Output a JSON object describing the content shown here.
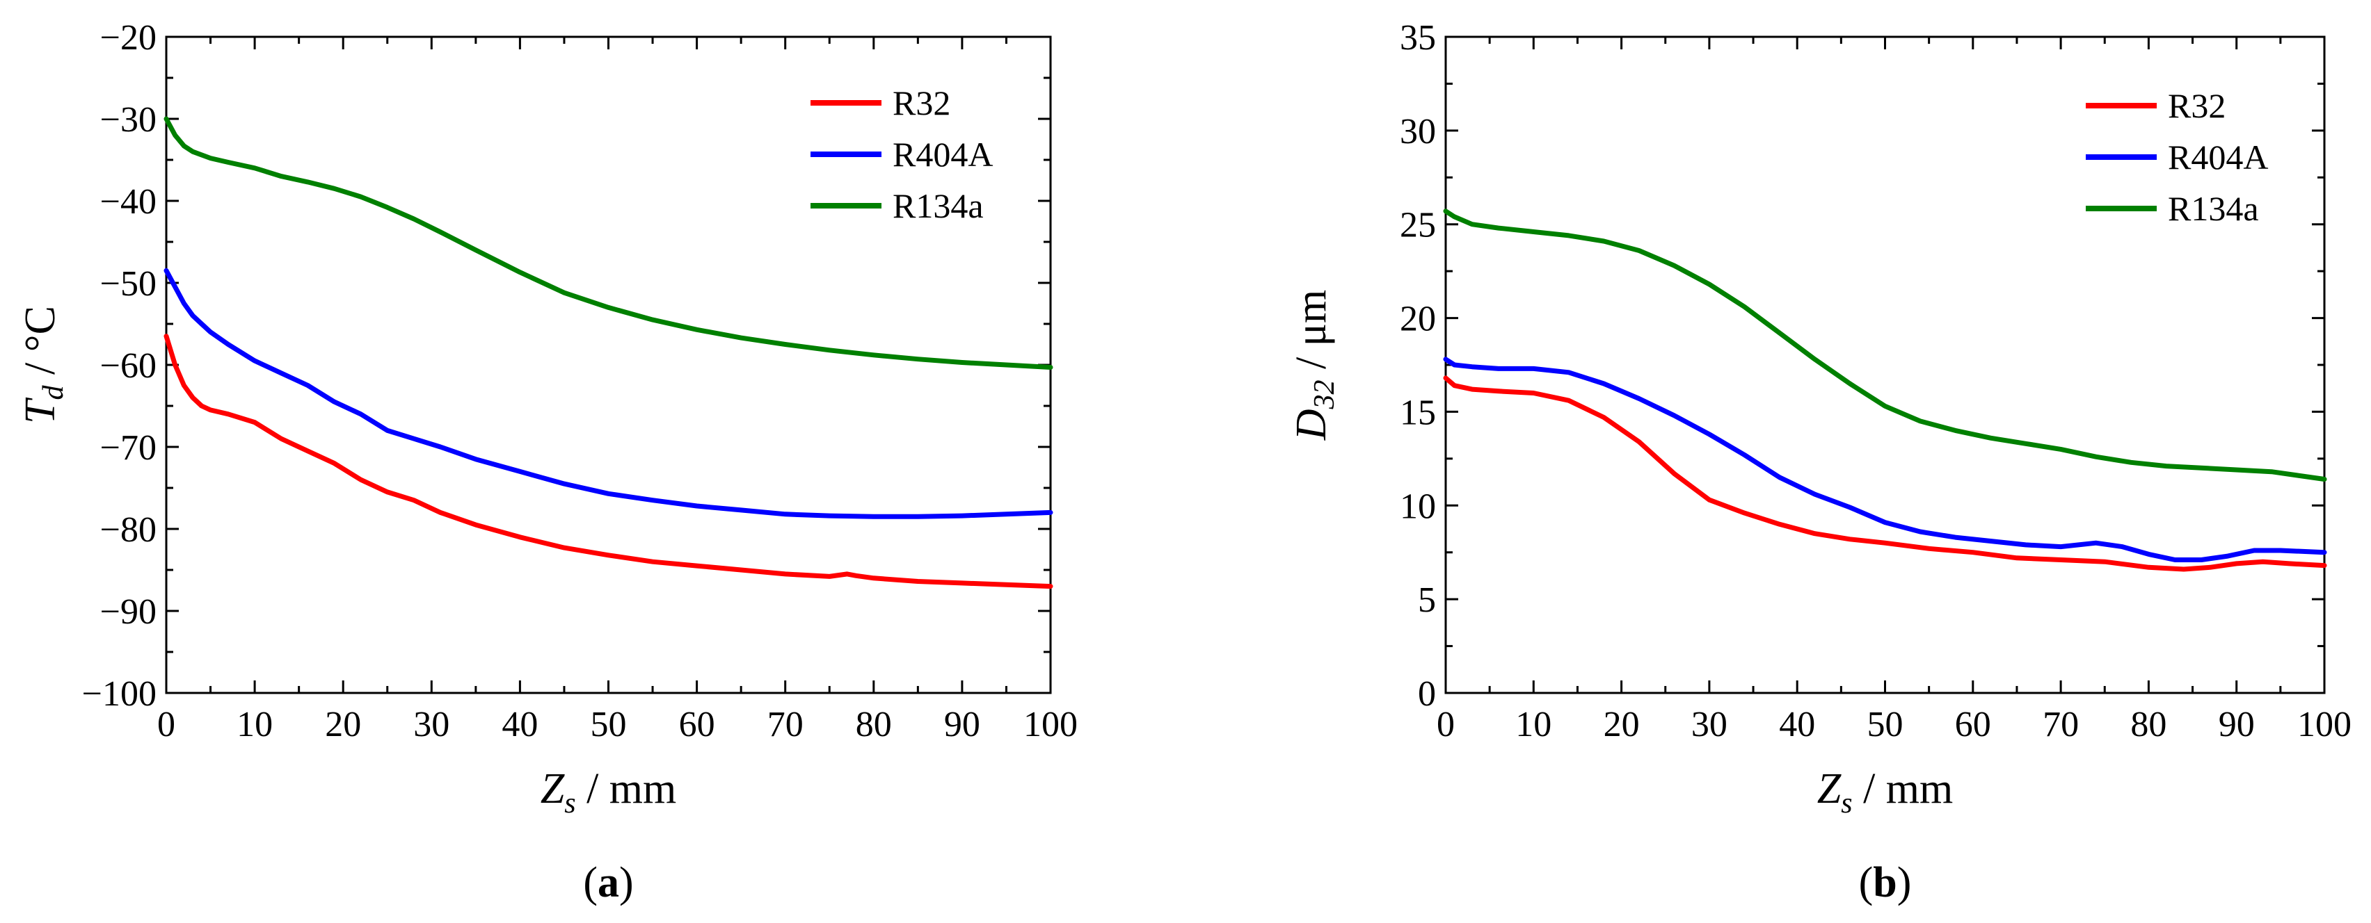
{
  "chart_data": [
    {
      "type": "line",
      "panel_label": "a",
      "ylabel": {
        "var": "T",
        "sub": "d",
        "unit": " / °C"
      },
      "xlabel": {
        "var": "Z",
        "sub": "s",
        "unit": " / mm"
      },
      "xlim": [
        0,
        100
      ],
      "ylim": [
        -100,
        -20
      ],
      "xticks": [
        0,
        10,
        20,
        30,
        40,
        50,
        60,
        70,
        80,
        90,
        100
      ],
      "yticks": [
        -100,
        -90,
        -80,
        -70,
        -60,
        -50,
        -40,
        -30,
        -20
      ],
      "legend_position": "top-right",
      "series": [
        {
          "name": "R32",
          "color": "#ff0000",
          "x": [
            0,
            1,
            2,
            3,
            4,
            5,
            7,
            10,
            13,
            16,
            19,
            22,
            25,
            28,
            31,
            35,
            40,
            45,
            50,
            55,
            60,
            65,
            70,
            75,
            77,
            78,
            80,
            85,
            90,
            95,
            100
          ],
          "y": [
            -56.5,
            -60,
            -62.5,
            -64,
            -65,
            -65.5,
            -66,
            -67,
            -69,
            -70.5,
            -72,
            -74,
            -75.5,
            -76.5,
            -78,
            -79.5,
            -81,
            -82.3,
            -83.2,
            -84,
            -84.5,
            -85,
            -85.5,
            -85.8,
            -85.5,
            -85.7,
            -86,
            -86.4,
            -86.6,
            -86.8,
            -87
          ]
        },
        {
          "name": "R404A",
          "color": "#0000ff",
          "x": [
            0,
            1,
            2,
            3,
            4,
            5,
            7,
            10,
            13,
            16,
            19,
            22,
            25,
            28,
            31,
            35,
            40,
            45,
            50,
            55,
            60,
            65,
            70,
            75,
            80,
            85,
            90,
            95,
            100
          ],
          "y": [
            -48.5,
            -50.5,
            -52.5,
            -54,
            -55,
            -56,
            -57.5,
            -59.5,
            -61,
            -62.5,
            -64.5,
            -66,
            -68,
            -69,
            -70,
            -71.5,
            -73,
            -74.5,
            -75.7,
            -76.5,
            -77.2,
            -77.7,
            -78.2,
            -78.4,
            -78.5,
            -78.5,
            -78.4,
            -78.2,
            -78
          ]
        },
        {
          "name": "R134a",
          "color": "#008000",
          "x": [
            0,
            1,
            2,
            3,
            5,
            7,
            10,
            13,
            16,
            19,
            22,
            25,
            28,
            31,
            35,
            40,
            45,
            50,
            55,
            60,
            65,
            70,
            75,
            80,
            85,
            90,
            95,
            100
          ],
          "y": [
            -30,
            -32,
            -33.3,
            -34,
            -34.8,
            -35.3,
            -36,
            -37,
            -37.7,
            -38.5,
            -39.5,
            -40.8,
            -42.2,
            -43.8,
            -46,
            -48.7,
            -51.2,
            -53,
            -54.5,
            -55.7,
            -56.7,
            -57.5,
            -58.2,
            -58.8,
            -59.3,
            -59.7,
            -60,
            -60.3
          ]
        }
      ]
    },
    {
      "type": "line",
      "panel_label": "b",
      "ylabel": {
        "var": "D",
        "sub": "32",
        "unit": " / μm"
      },
      "xlabel": {
        "var": "Z",
        "sub": "s",
        "unit": " / mm"
      },
      "xlim": [
        0,
        100
      ],
      "ylim": [
        0,
        35
      ],
      "xticks": [
        0,
        10,
        20,
        30,
        40,
        50,
        60,
        70,
        80,
        90,
        100
      ],
      "yticks": [
        0,
        5,
        10,
        15,
        20,
        25,
        30,
        35
      ],
      "legend_position": "top-right",
      "series": [
        {
          "name": "R32",
          "color": "#ff0000",
          "x": [
            0,
            1,
            3,
            6,
            10,
            14,
            18,
            22,
            26,
            30,
            34,
            38,
            42,
            46,
            50,
            55,
            60,
            65,
            70,
            75,
            80,
            84,
            87,
            90,
            93,
            96,
            100
          ],
          "y": [
            16.8,
            16.4,
            16.2,
            16.1,
            16,
            15.6,
            14.7,
            13.4,
            11.7,
            10.3,
            9.6,
            9,
            8.5,
            8.2,
            8,
            7.7,
            7.5,
            7.2,
            7.1,
            7,
            6.7,
            6.6,
            6.7,
            6.9,
            7,
            6.9,
            6.8
          ]
        },
        {
          "name": "R404A",
          "color": "#0000ff",
          "x": [
            0,
            1,
            3,
            6,
            10,
            14,
            18,
            22,
            26,
            30,
            34,
            38,
            42,
            46,
            50,
            54,
            58,
            62,
            66,
            70,
            74,
            77,
            80,
            83,
            86,
            89,
            92,
            95,
            100
          ],
          "y": [
            17.8,
            17.5,
            17.4,
            17.3,
            17.3,
            17.1,
            16.5,
            15.7,
            14.8,
            13.8,
            12.7,
            11.5,
            10.6,
            9.9,
            9.1,
            8.6,
            8.3,
            8.1,
            7.9,
            7.8,
            8,
            7.8,
            7.4,
            7.1,
            7.1,
            7.3,
            7.6,
            7.6,
            7.5
          ]
        },
        {
          "name": "R134a",
          "color": "#008000",
          "x": [
            0,
            1,
            3,
            6,
            10,
            14,
            18,
            22,
            26,
            30,
            34,
            38,
            42,
            46,
            50,
            54,
            58,
            62,
            66,
            70,
            74,
            78,
            82,
            86,
            90,
            94,
            97,
            100
          ],
          "y": [
            25.7,
            25.4,
            25,
            24.8,
            24.6,
            24.4,
            24.1,
            23.6,
            22.8,
            21.8,
            20.6,
            19.2,
            17.8,
            16.5,
            15.3,
            14.5,
            14,
            13.6,
            13.3,
            13,
            12.6,
            12.3,
            12.1,
            12,
            11.9,
            11.8,
            11.6,
            11.4
          ]
        }
      ]
    }
  ]
}
